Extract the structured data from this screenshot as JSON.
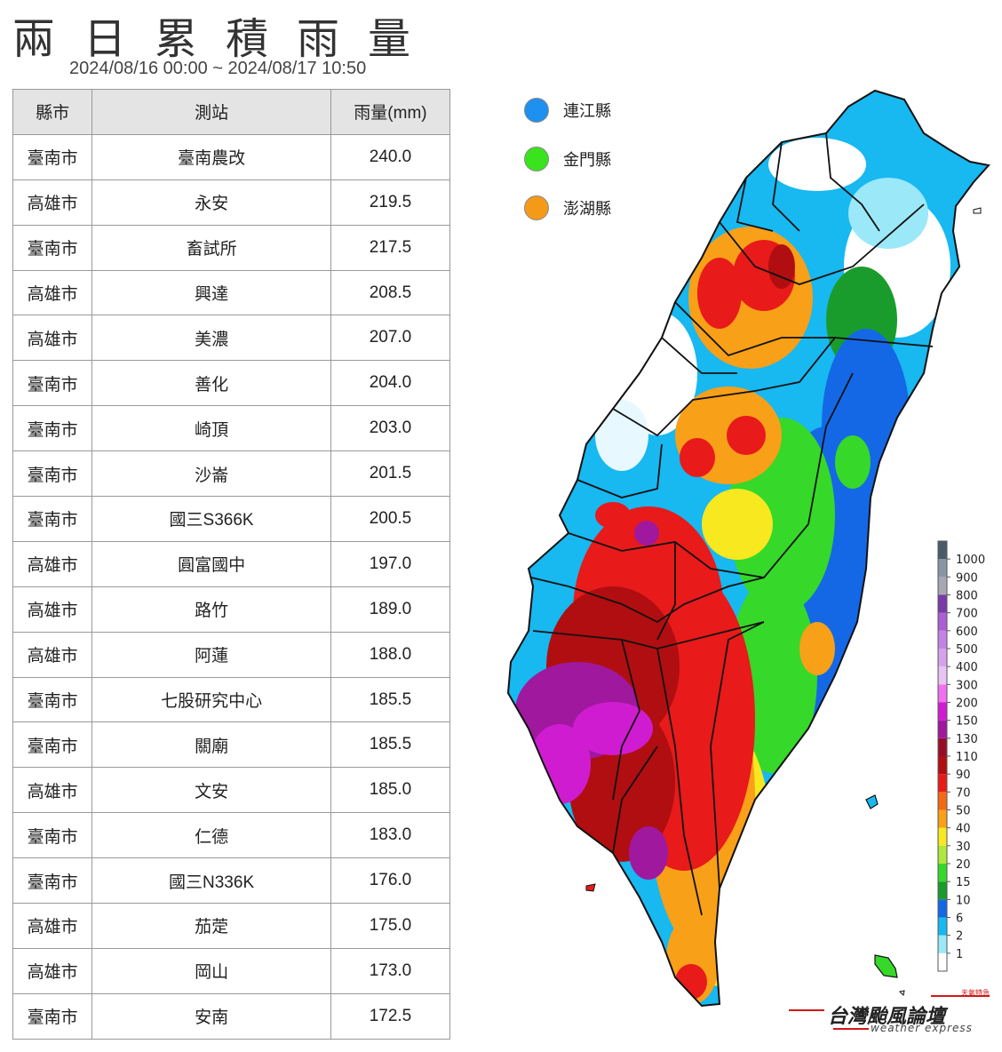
{
  "header": {
    "title": "兩日累積雨量",
    "period": "2024/08/16 00:00 ~ 2024/08/17 10:50"
  },
  "table": {
    "columns": [
      "縣市",
      "測站",
      "雨量(mm)"
    ],
    "rows": [
      {
        "county": "臺南市",
        "station": "臺南農改",
        "rain": "240.0"
      },
      {
        "county": "高雄市",
        "station": "永安",
        "rain": "219.5"
      },
      {
        "county": "臺南市",
        "station": "畜試所",
        "rain": "217.5"
      },
      {
        "county": "高雄市",
        "station": "興達",
        "rain": "208.5"
      },
      {
        "county": "高雄市",
        "station": "美濃",
        "rain": "207.0"
      },
      {
        "county": "臺南市",
        "station": "善化",
        "rain": "204.0"
      },
      {
        "county": "臺南市",
        "station": "崎頂",
        "rain": "203.0"
      },
      {
        "county": "臺南市",
        "station": "沙崙",
        "rain": "201.5"
      },
      {
        "county": "臺南市",
        "station": "國三S366K",
        "rain": "200.5"
      },
      {
        "county": "高雄市",
        "station": "圓富國中",
        "rain": "197.0"
      },
      {
        "county": "高雄市",
        "station": "路竹",
        "rain": "189.0"
      },
      {
        "county": "高雄市",
        "station": "阿蓮",
        "rain": "188.0"
      },
      {
        "county": "臺南市",
        "station": "七股研究中心",
        "rain": "185.5"
      },
      {
        "county": "臺南市",
        "station": "關廟",
        "rain": "185.5"
      },
      {
        "county": "高雄市",
        "station": "文安",
        "rain": "185.0"
      },
      {
        "county": "臺南市",
        "station": "仁德",
        "rain": "183.0"
      },
      {
        "county": "臺南市",
        "station": "國三N336K",
        "rain": "176.0"
      },
      {
        "county": "高雄市",
        "station": "茄萣",
        "rain": "175.0"
      },
      {
        "county": "高雄市",
        "station": "岡山",
        "rain": "173.0"
      },
      {
        "county": "臺南市",
        "station": "安南",
        "rain": "172.5"
      }
    ]
  },
  "outlying_islands": [
    {
      "name": "連江縣",
      "color": "#1e90f0"
    },
    {
      "name": "金門縣",
      "color": "#39e41e"
    },
    {
      "name": "澎湖縣",
      "color": "#f59a18"
    }
  ],
  "colorbar": {
    "levels": [
      "1",
      "2",
      "6",
      "10",
      "15",
      "20",
      "30",
      "40",
      "50",
      "70",
      "90",
      "110",
      "130",
      "150",
      "200",
      "300",
      "400",
      "500",
      "600",
      "700",
      "800",
      "900",
      "1000"
    ],
    "colors": [
      "#ffffff",
      "#9be8f8",
      "#18b8f0",
      "#1468e6",
      "#1a9c2c",
      "#36d82a",
      "#aee83a",
      "#f8e820",
      "#f8a018",
      "#f46a12",
      "#e81a1a",
      "#b00e10",
      "#960e26",
      "#a0189e",
      "#d01cd0",
      "#f070f0",
      "#e8c4f2",
      "#d8a2ea",
      "#c682e2",
      "#aa60d2",
      "#7a3aa8",
      "#a8a8b4",
      "#8696a2",
      "#4a5a6a"
    ]
  },
  "logo": {
    "main": "台灣颱風論壇",
    "sub": "weather express",
    "tag": "天氣特急"
  }
}
